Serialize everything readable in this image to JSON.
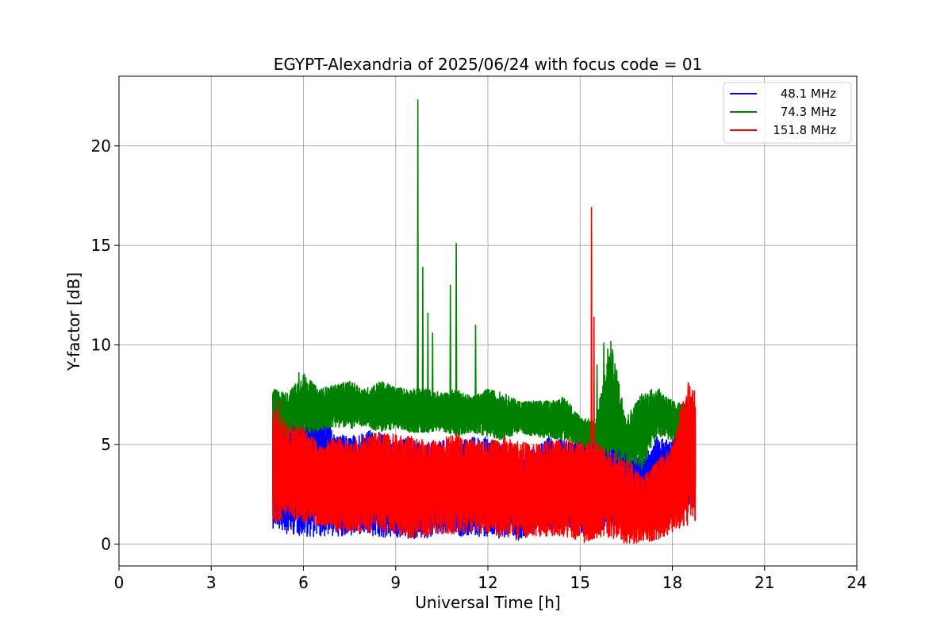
{
  "chart_data": {
    "type": "line",
    "title": "EGYPT-Alexandria of 2025/06/24 with focus code = 01",
    "xlabel": "Universal Time [h]",
    "ylabel": "Y-factor [dB]",
    "xlim": [
      0,
      24
    ],
    "ylim": [
      -1.1,
      23.5
    ],
    "xticks": [
      0,
      3,
      6,
      9,
      12,
      15,
      18,
      21,
      24
    ],
    "yticks": [
      0,
      5,
      10,
      15,
      20
    ],
    "grid": true,
    "legend_position": "top-right",
    "series": [
      {
        "name": "48.1 MHz",
        "color": "#0000ff",
        "x": [
          5.0,
          5.5,
          6.0,
          6.5,
          7.0,
          7.5,
          8.0,
          8.5,
          9.0,
          9.5,
          10.0,
          10.5,
          11.0,
          11.5,
          12.0,
          12.5,
          13.0,
          13.5,
          14.0,
          14.5,
          15.0,
          15.5,
          16.0,
          16.5,
          17.0,
          17.5,
          18.0,
          18.5,
          18.75
        ],
        "y_low": [
          0.8,
          0.5,
          0.4,
          0.3,
          0.4,
          0.4,
          0.4,
          0.3,
          0.3,
          0.2,
          0.3,
          0.4,
          0.4,
          0.4,
          0.3,
          0.3,
          0.2,
          0.7,
          0.7,
          0.8,
          0.5,
          0.5,
          0.9,
          1.0,
          2.4,
          2.0,
          2.0,
          1.8,
          2.2
        ],
        "y_high": [
          7.2,
          7.4,
          6.4,
          8.1,
          5.6,
          5.4,
          5.8,
          5.6,
          5.2,
          5.4,
          5.0,
          5.2,
          5.2,
          5.4,
          5.4,
          5.0,
          4.8,
          4.8,
          5.4,
          5.2,
          5.2,
          5.8,
          5.4,
          5.2,
          4.2,
          5.4,
          5.2,
          7.3,
          7.0
        ]
      },
      {
        "name": "74.3 MHz",
        "color": "#008000",
        "x": [
          5.0,
          5.5,
          6.0,
          6.5,
          7.0,
          7.5,
          8.0,
          8.5,
          9.0,
          9.5,
          10.0,
          10.5,
          11.0,
          11.5,
          12.0,
          12.5,
          13.0,
          13.5,
          14.0,
          14.5,
          15.0,
          15.5,
          16.0,
          16.5,
          17.0,
          17.5,
          18.0,
          18.5
        ],
        "y_low": [
          5.3,
          5.5,
          5.6,
          5.6,
          5.9,
          5.8,
          5.9,
          5.6,
          5.8,
          5.6,
          5.6,
          5.7,
          5.4,
          5.6,
          5.4,
          5.2,
          5.6,
          5.4,
          5.3,
          5.2,
          5.0,
          4.6,
          4.3,
          4.0,
          3.7,
          5.4,
          5.2,
          5.6
        ],
        "y_high": [
          7.8,
          7.6,
          8.6,
          7.8,
          8.0,
          8.2,
          7.8,
          8.2,
          7.9,
          7.8,
          7.8,
          7.6,
          7.8,
          7.4,
          7.8,
          7.6,
          7.2,
          7.2,
          7.2,
          7.4,
          6.4,
          6.2,
          10.2,
          6.4,
          7.6,
          7.9,
          7.2,
          7.0
        ],
        "spikes": [
          [
            5.85,
            8.6
          ],
          [
            9.72,
            22.3
          ],
          [
            9.88,
            13.9
          ],
          [
            10.05,
            11.6
          ],
          [
            10.2,
            10.6
          ],
          [
            10.78,
            13.0
          ],
          [
            10.97,
            15.1
          ],
          [
            11.6,
            11.0
          ],
          [
            15.55,
            9.0
          ],
          [
            15.77,
            10.1
          ],
          [
            15.9,
            9.8
          ]
        ]
      },
      {
        "name": "151.8 MHz",
        "color": "#ff0000",
        "x": [
          5.0,
          5.5,
          6.0,
          6.5,
          7.0,
          7.5,
          8.0,
          8.5,
          9.0,
          9.5,
          10.0,
          10.5,
          11.0,
          11.5,
          12.0,
          12.5,
          13.0,
          13.5,
          14.0,
          14.5,
          15.0,
          15.5,
          16.0,
          16.5,
          17.0,
          17.5,
          18.0,
          18.5,
          18.75
        ],
        "y_low": [
          1.0,
          1.4,
          1.0,
          1.0,
          0.6,
          0.6,
          0.6,
          0.6,
          0.5,
          0.3,
          0.4,
          0.5,
          0.5,
          0.5,
          0.6,
          0.3,
          0.3,
          0.3,
          0.4,
          0.4,
          0.0,
          0.3,
          0.3,
          0.0,
          0.0,
          0.2,
          0.6,
          0.8,
          1.1
        ],
        "y_high": [
          7.1,
          6.0,
          6.0,
          5.0,
          5.4,
          5.2,
          5.5,
          5.6,
          5.5,
          5.4,
          5.2,
          5.3,
          5.6,
          5.2,
          5.2,
          5.4,
          5.2,
          5.0,
          5.3,
          5.4,
          5.2,
          5.2,
          4.6,
          4.4,
          3.4,
          4.2,
          5.0,
          8.3,
          8.1
        ],
        "spikes": [
          [
            5.2,
            7.2
          ],
          [
            15.37,
            16.9
          ],
          [
            15.45,
            11.4
          ]
        ]
      }
    ]
  }
}
